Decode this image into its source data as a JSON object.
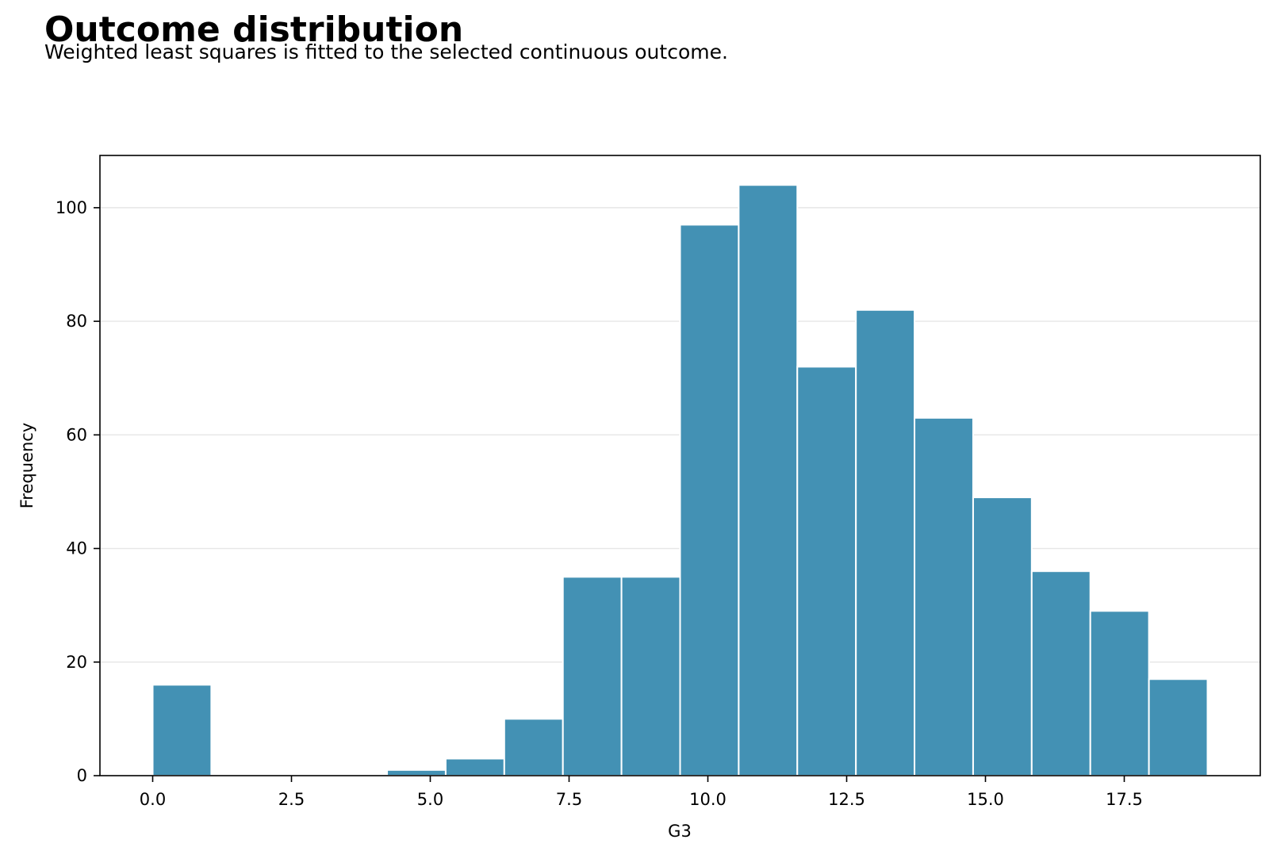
{
  "header": {
    "title": "Outcome distribution",
    "subtitle": "Weighted least squares is fitted to the selected continuous outcome."
  },
  "chart_data": {
    "type": "bar",
    "title": "Outcome distribution",
    "subtitle": "Weighted least squares is fitted to the selected continuous outcome.",
    "xlabel": "G3",
    "ylabel": "Frequency",
    "xlim": [
      -0.95,
      19.95
    ],
    "ylim": [
      0,
      109.2
    ],
    "bin_width": 1.0556,
    "bins": [
      {
        "x0": 0.0,
        "x1": 1.0556,
        "count": 16
      },
      {
        "x0": 1.0556,
        "x1": 2.1111,
        "count": 0
      },
      {
        "x0": 2.1111,
        "x1": 3.1667,
        "count": 0
      },
      {
        "x0": 3.1667,
        "x1": 4.2222,
        "count": 0
      },
      {
        "x0": 4.2222,
        "x1": 5.2778,
        "count": 1
      },
      {
        "x0": 5.2778,
        "x1": 6.3333,
        "count": 3
      },
      {
        "x0": 6.3333,
        "x1": 7.3889,
        "count": 10
      },
      {
        "x0": 7.3889,
        "x1": 8.4444,
        "count": 35
      },
      {
        "x0": 8.4444,
        "x1": 9.5,
        "count": 35
      },
      {
        "x0": 9.5,
        "x1": 10.5556,
        "count": 97
      },
      {
        "x0": 10.5556,
        "x1": 11.6111,
        "count": 104
      },
      {
        "x0": 11.6111,
        "x1": 12.6667,
        "count": 72
      },
      {
        "x0": 12.6667,
        "x1": 13.7222,
        "count": 82
      },
      {
        "x0": 13.7222,
        "x1": 14.7778,
        "count": 63
      },
      {
        "x0": 14.7778,
        "x1": 15.8333,
        "count": 49
      },
      {
        "x0": 15.8333,
        "x1": 16.8889,
        "count": 36
      },
      {
        "x0": 16.8889,
        "x1": 17.9444,
        "count": 29
      },
      {
        "x0": 17.9444,
        "x1": 19.0,
        "count": 17
      }
    ],
    "x_ticks": [
      {
        "value": 0.0,
        "label": "0.0"
      },
      {
        "value": 2.5,
        "label": "2.5"
      },
      {
        "value": 5.0,
        "label": "5.0"
      },
      {
        "value": 7.5,
        "label": "7.5"
      },
      {
        "value": 10.0,
        "label": "10.0"
      },
      {
        "value": 12.5,
        "label": "12.5"
      },
      {
        "value": 15.0,
        "label": "15.0"
      },
      {
        "value": 17.5,
        "label": "17.5"
      }
    ],
    "y_ticks": [
      {
        "value": 0,
        "label": "0"
      },
      {
        "value": 20,
        "label": "20"
      },
      {
        "value": 40,
        "label": "40"
      },
      {
        "value": 60,
        "label": "60"
      },
      {
        "value": 80,
        "label": "80"
      },
      {
        "value": 100,
        "label": "100"
      }
    ],
    "grid": "horizontal",
    "bar_color": "#4391b4",
    "bar_edge_color": "#ffffff",
    "grid_color": "#e6e6e6"
  }
}
